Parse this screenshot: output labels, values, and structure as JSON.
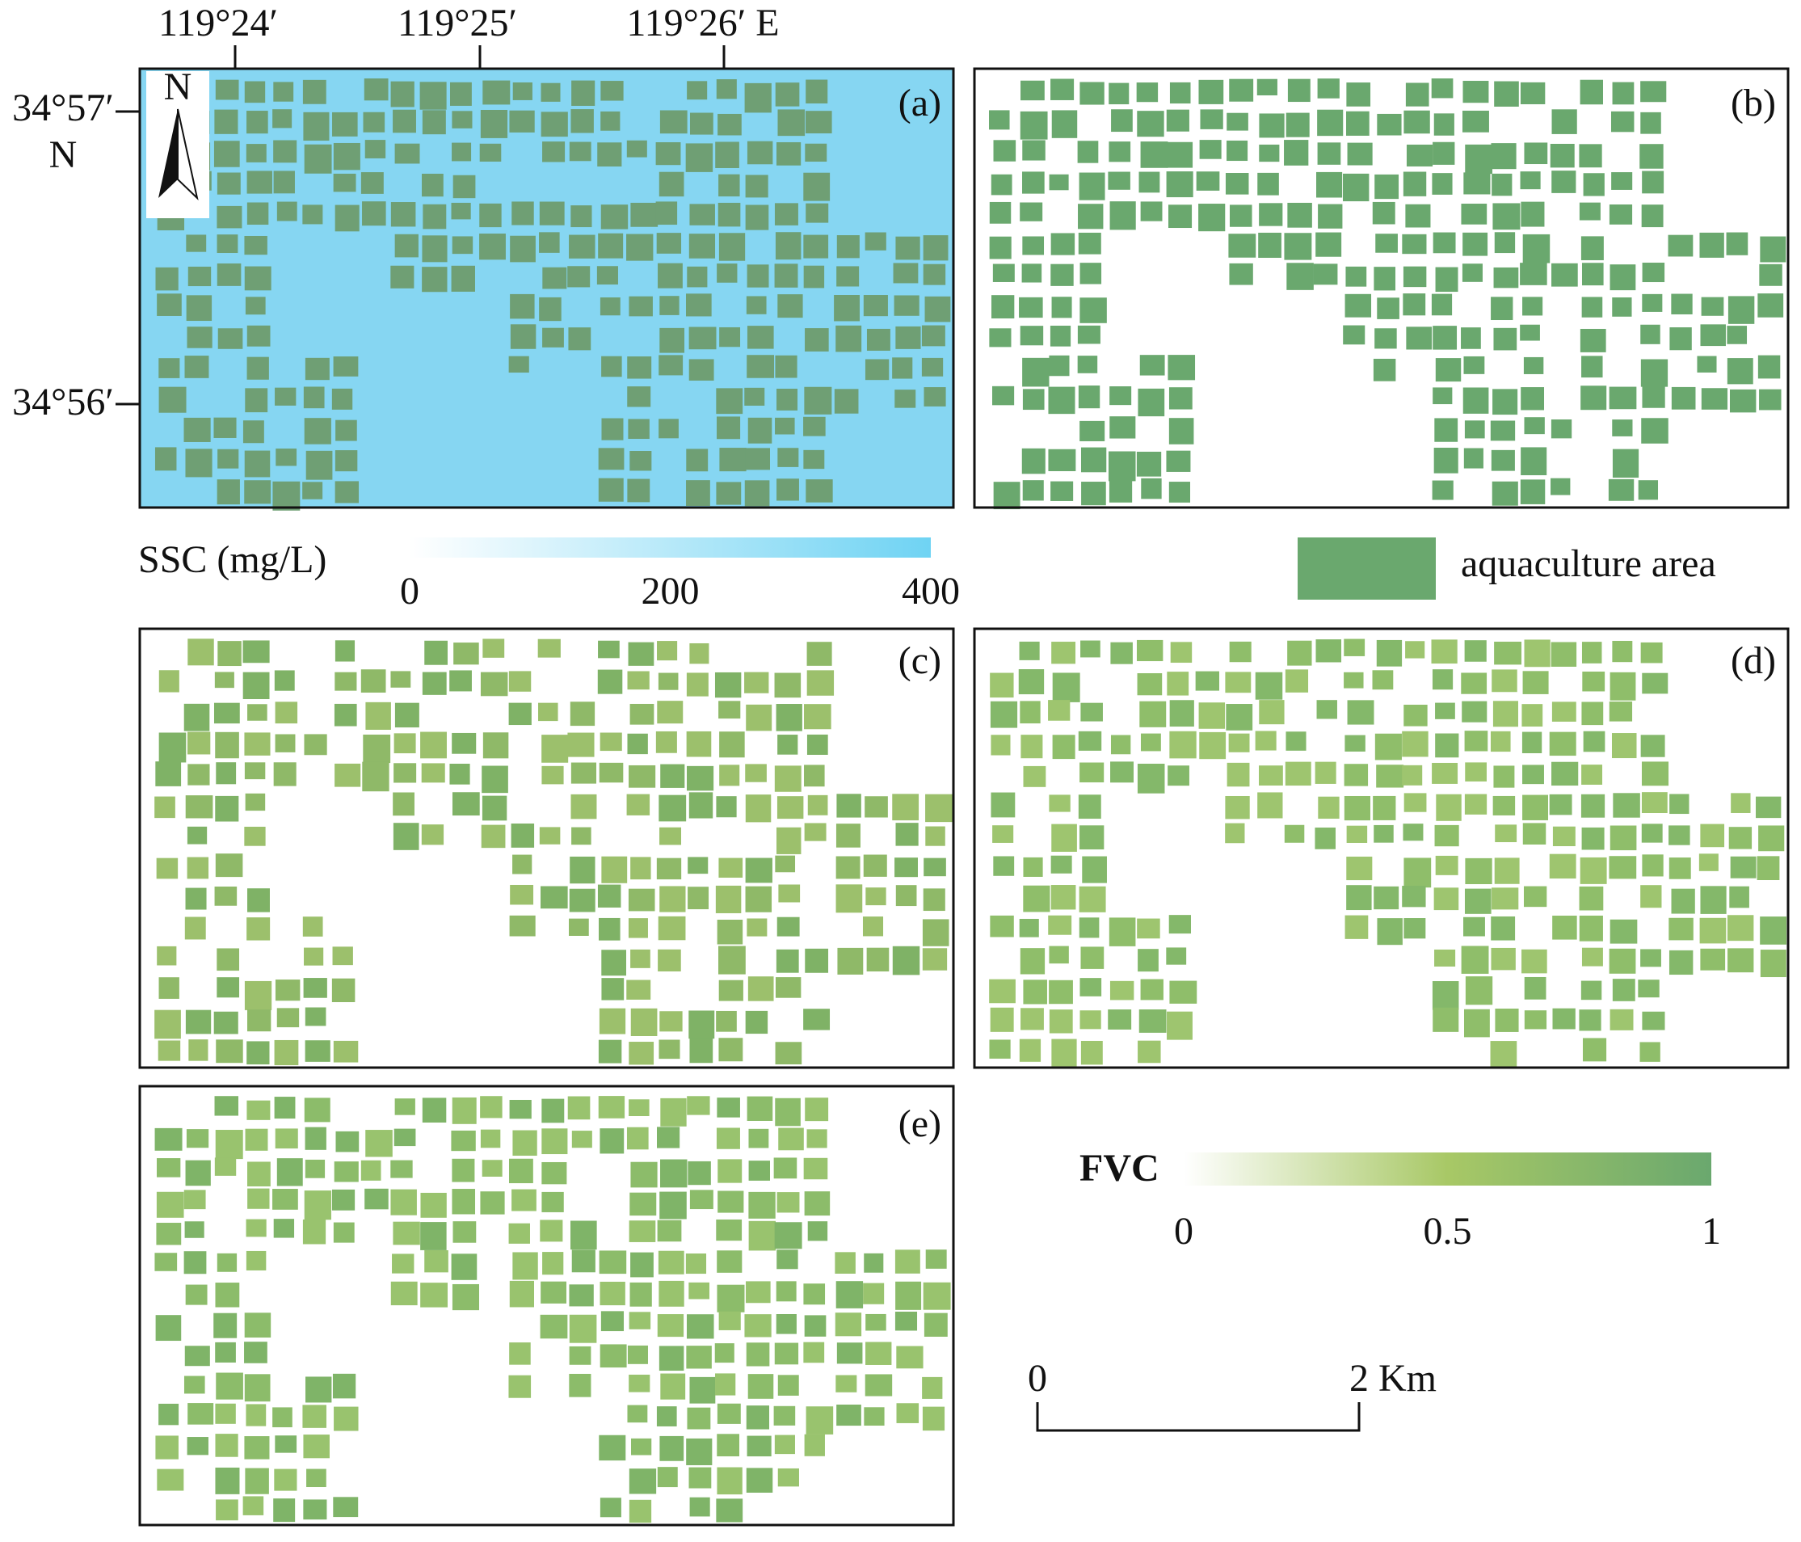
{
  "panels": {
    "a": "(a)",
    "b": "(b)",
    "c": "(c)",
    "d": "(d)",
    "e": "(e)"
  },
  "coordinates": {
    "top": [
      "119°24′",
      "119°25′",
      "119°26′ E"
    ],
    "left": [
      "34°57′",
      "N",
      "34°56′"
    ]
  },
  "north_arrow": "N",
  "ssc_legend": {
    "title": "SSC (mg/L)",
    "ticks": [
      0,
      200,
      400
    ]
  },
  "aquaculture_legend": "aquaculture area",
  "fvc_legend": {
    "title": "FVC",
    "ticks": [
      0,
      0.5,
      1
    ]
  },
  "scale_bar": {
    "start": "0",
    "end": "2 Km"
  }
}
